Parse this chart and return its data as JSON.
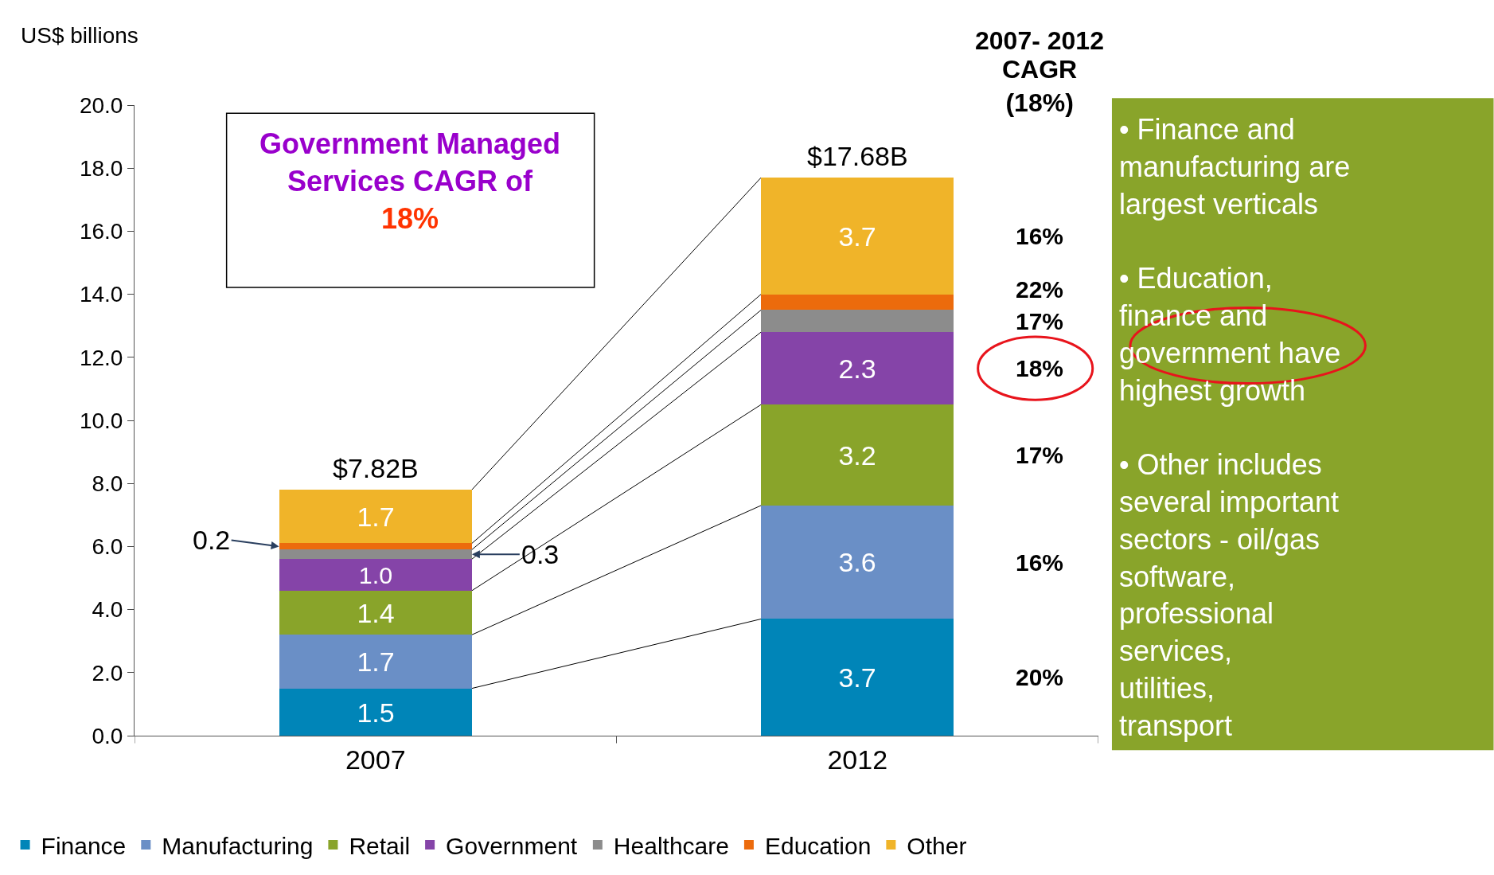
{
  "chart_data": {
    "type": "bar",
    "stacked": true,
    "ylabel": "US$ billions",
    "categories": [
      "2007",
      "2012"
    ],
    "series": [
      {
        "name": "Finance",
        "color": "#0085b8",
        "values": [
          1.5,
          3.7
        ],
        "value_labels": [
          "1.5",
          "3.7"
        ]
      },
      {
        "name": "Manufacturing",
        "color": "#6a8fc6",
        "values": [
          1.7,
          3.6
        ],
        "value_labels": [
          "1.7",
          "3.6"
        ]
      },
      {
        "name": "Retail",
        "color": "#89a42a",
        "values": [
          1.4,
          3.2
        ],
        "value_labels": [
          "1.4",
          "3.2"
        ]
      },
      {
        "name": "Government",
        "color": "#8544a8",
        "values": [
          1.0,
          2.3
        ],
        "value_labels": [
          "1.0",
          "2.3"
        ]
      },
      {
        "name": "Healthcare",
        "color": "#8c8c8c",
        "values": [
          0.3,
          0.7
        ],
        "value_labels": [
          "0.3",
          null
        ]
      },
      {
        "name": "Education",
        "color": "#ec6b0c",
        "values": [
          0.2,
          0.5
        ],
        "value_labels": [
          "0.2",
          null
        ]
      },
      {
        "name": "Other",
        "color": "#f0b429",
        "values": [
          1.7,
          3.7
        ],
        "value_labels": [
          "1.7",
          "3.7"
        ]
      }
    ],
    "totals": [
      "$7.82B",
      "$17.68B"
    ],
    "ylim": [
      0,
      20
    ],
    "yticks": [
      {
        "value": 0,
        "label": "0.0"
      },
      {
        "value": 2,
        "label": "2.0"
      },
      {
        "value": 4,
        "label": "4.0"
      },
      {
        "value": 6,
        "label": "6.0"
      },
      {
        "value": 8,
        "label": "8.0"
      },
      {
        "value": 10,
        "label": "10.0"
      },
      {
        "value": 12,
        "label": "12.0"
      },
      {
        "value": 14,
        "label": "14.0"
      },
      {
        "value": 16,
        "label": "16.0"
      },
      {
        "value": 18,
        "label": "18.0"
      },
      {
        "value": 20,
        "label": "20.0"
      }
    ],
    "grid": false,
    "legend": "bottom",
    "annotations": [
      "2007- 2012",
      "CAGR\n(18%)",
      "Government Managed Services CAGR of",
      "18%",
      "• Finance and manufacturing are largest verticals",
      "• Education, finance and government have highest growth",
      "• Other includes several important sectors - oil/gas software, professional services, utilities, transport",
      "20%",
      "16%",
      "17%",
      "18%",
      "17%",
      "22%",
      "16%"
    ]
  }
}
